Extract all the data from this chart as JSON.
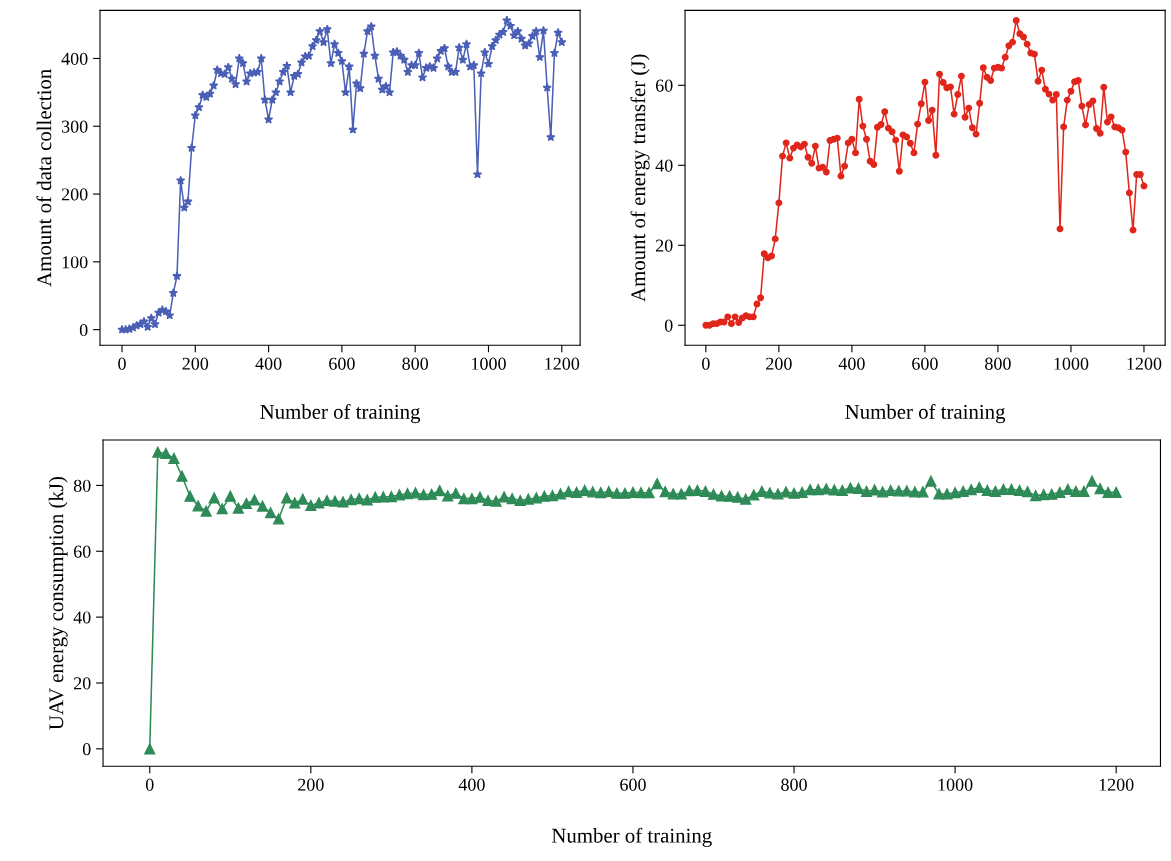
{
  "chart_data": [
    {
      "type": "line",
      "xlabel": "Number of training",
      "ylabel": "Amount of data collection",
      "marker": "star",
      "line_style": "solid",
      "grid": false,
      "xlim": [
        -60,
        1250
      ],
      "ylim": [
        -23,
        471
      ],
      "xticks": [
        0,
        200,
        400,
        600,
        800,
        1000,
        1200
      ],
      "yticks": [
        0,
        100,
        200,
        300,
        400
      ],
      "series": [
        {
          "color": "#4a5fb5",
          "x": [
            0,
            10,
            20,
            30,
            40,
            50,
            60,
            70,
            80,
            90,
            100,
            110,
            120,
            130,
            140,
            150,
            160,
            170,
            180,
            190,
            200,
            210,
            220,
            230,
            240,
            250,
            260,
            270,
            280,
            290,
            300,
            310,
            320,
            330,
            340,
            350,
            360,
            370,
            380,
            390,
            400,
            410,
            420,
            430,
            440,
            450,
            460,
            470,
            480,
            490,
            500,
            510,
            520,
            530,
            540,
            550,
            560,
            570,
            580,
            590,
            600,
            610,
            620,
            630,
            640,
            650,
            660,
            670,
            680,
            690,
            700,
            710,
            720,
            730,
            740,
            750,
            760,
            770,
            780,
            790,
            800,
            810,
            820,
            830,
            840,
            850,
            860,
            870,
            880,
            890,
            900,
            910,
            920,
            930,
            940,
            950,
            960,
            970,
            980,
            990,
            1000,
            1010,
            1020,
            1030,
            1040,
            1050,
            1060,
            1070,
            1080,
            1090,
            1100,
            1110,
            1120,
            1130,
            1140,
            1150,
            1160,
            1170,
            1180,
            1190,
            1200
          ],
          "values": [
            0,
            0,
            1,
            3,
            6,
            8,
            12,
            4,
            17,
            8,
            25,
            29,
            27,
            21,
            54,
            79,
            220,
            180,
            189,
            268,
            316,
            328,
            346,
            343,
            348,
            360,
            383,
            378,
            377,
            387,
            370,
            362,
            400,
            393,
            366,
            378,
            379,
            380,
            400,
            339,
            310,
            339,
            350,
            366,
            380,
            389,
            350,
            374,
            377,
            394,
            403,
            404,
            418,
            427,
            440,
            424,
            443,
            393,
            421,
            408,
            396,
            350,
            388,
            295,
            363,
            356,
            407,
            440,
            447,
            404,
            370,
            354,
            359,
            350,
            409,
            410,
            404,
            398,
            380,
            390,
            390,
            408,
            372,
            386,
            388,
            386,
            400,
            411,
            415,
            388,
            380,
            380,
            416,
            398,
            421,
            388,
            390,
            229,
            378,
            409,
            392,
            418,
            427,
            435,
            439,
            456,
            448,
            434,
            440,
            429,
            419,
            422,
            433,
            440,
            402,
            441,
            357,
            284,
            408,
            438,
            424
          ]
        }
      ]
    },
    {
      "type": "line",
      "xlabel": "Number of training",
      "ylabel": "Amount of energy transfer (J)",
      "marker": "circle",
      "line_style": "solid",
      "grid": false,
      "xlim": [
        -57,
        1258
      ],
      "ylim": [
        -5,
        78.75
      ],
      "xticks": [
        0,
        200,
        400,
        600,
        800,
        1000,
        1200
      ],
      "yticks": [
        0,
        20,
        40,
        60
      ],
      "series": [
        {
          "color": "#e0261b",
          "x": [
            0,
            10,
            20,
            30,
            40,
            50,
            60,
            70,
            80,
            90,
            100,
            110,
            120,
            130,
            140,
            150,
            160,
            170,
            180,
            190,
            200,
            210,
            220,
            230,
            240,
            250,
            260,
            270,
            280,
            290,
            300,
            310,
            320,
            330,
            340,
            350,
            360,
            370,
            380,
            390,
            400,
            410,
            420,
            430,
            440,
            450,
            460,
            470,
            480,
            490,
            500,
            510,
            520,
            530,
            540,
            550,
            560,
            570,
            580,
            590,
            600,
            610,
            620,
            630,
            640,
            650,
            660,
            670,
            680,
            690,
            700,
            710,
            720,
            730,
            740,
            750,
            760,
            770,
            780,
            790,
            800,
            810,
            820,
            830,
            840,
            850,
            860,
            870,
            880,
            890,
            900,
            910,
            920,
            930,
            940,
            950,
            960,
            970,
            980,
            990,
            1000,
            1010,
            1020,
            1030,
            1040,
            1050,
            1060,
            1070,
            1080,
            1090,
            1100,
            1110,
            1120,
            1130,
            1140,
            1150,
            1160,
            1170,
            1180,
            1190,
            1200
          ],
          "values": [
            0,
            0,
            0.4,
            0.4,
            0.8,
            0.8,
            2.1,
            0.4,
            2.1,
            0.7,
            1.8,
            2.4,
            2.1,
            2.1,
            5.3,
            6.9,
            17.9,
            16.9,
            17.3,
            21.6,
            30.6,
            42.3,
            45.6,
            41.8,
            44.3,
            45.1,
            44.6,
            45.3,
            42,
            40.5,
            44.8,
            39.3,
            39.5,
            38.3,
            46.2,
            46.5,
            46.8,
            37.3,
            39.8,
            45.6,
            46.5,
            43.1,
            56.5,
            49.8,
            46.5,
            41,
            40.2,
            49.5,
            50.2,
            53.4,
            49.3,
            48.4,
            46.3,
            38.5,
            47.6,
            47.1,
            45.5,
            43.1,
            50.3,
            55.4,
            60.8,
            51.2,
            53.8,
            42.5,
            62.8,
            60.7,
            59.4,
            59.6,
            52.8,
            57.7,
            62.3,
            52,
            54.3,
            49.4,
            47.8,
            55.5,
            64.4,
            62,
            61.2,
            64.3,
            64.5,
            64.3,
            67,
            69.9,
            70.8,
            76.2,
            72.9,
            72.1,
            70.3,
            68.1,
            67.8,
            61,
            63.8,
            59,
            57.8,
            56.3,
            57.7,
            24.1,
            49.6,
            56.3,
            58.5,
            60.9,
            61.2,
            54.8,
            50.1,
            55.2,
            56.1,
            49.2,
            48,
            59.5,
            50.8,
            52.1,
            49.6,
            49.4,
            48.8,
            43.3,
            33.1,
            23.8,
            37.7,
            37.7,
            34.8
          ]
        }
      ]
    },
    {
      "type": "line",
      "xlabel": "Number of training",
      "ylabel": "UAV energy consumption (kJ)",
      "marker": "triangle",
      "line_style": "solid",
      "grid": false,
      "xlim": [
        -58,
        1255
      ],
      "ylim": [
        -5.3,
        93.8
      ],
      "xticks": [
        0,
        200,
        400,
        600,
        800,
        1000,
        1200
      ],
      "yticks": [
        0,
        20,
        40,
        60,
        80
      ],
      "series": [
        {
          "color": "#2e8b57",
          "x": [
            0,
            10,
            20,
            30,
            40,
            50,
            60,
            70,
            80,
            90,
            100,
            110,
            120,
            130,
            140,
            150,
            160,
            170,
            180,
            190,
            200,
            210,
            220,
            230,
            240,
            250,
            260,
            270,
            280,
            290,
            300,
            310,
            320,
            330,
            340,
            350,
            360,
            370,
            380,
            390,
            400,
            410,
            420,
            430,
            440,
            450,
            460,
            470,
            480,
            490,
            500,
            510,
            520,
            530,
            540,
            550,
            560,
            570,
            580,
            590,
            600,
            610,
            620,
            630,
            640,
            650,
            660,
            670,
            680,
            690,
            700,
            710,
            720,
            730,
            740,
            750,
            760,
            770,
            780,
            790,
            800,
            810,
            820,
            830,
            840,
            850,
            860,
            870,
            880,
            890,
            900,
            910,
            920,
            930,
            940,
            950,
            960,
            970,
            980,
            990,
            1000,
            1010,
            1020,
            1030,
            1040,
            1050,
            1060,
            1070,
            1080,
            1090,
            1100,
            1110,
            1120,
            1130,
            1140,
            1150,
            1160,
            1170,
            1180,
            1190,
            1200
          ],
          "values": [
            0,
            90.1,
            89.7,
            88.2,
            82.8,
            76.7,
            73.8,
            72.2,
            76.2,
            72.9,
            76.7,
            73.1,
            74.5,
            75.6,
            73.7,
            71.7,
            69.8,
            76.2,
            74.7,
            75.8,
            73.9,
            74.7,
            75.4,
            75.2,
            75,
            75.7,
            76,
            75.6,
            76.4,
            76.5,
            76.6,
            77.1,
            77.5,
            77.7,
            77.2,
            77.3,
            78.4,
            76.8,
            77.6,
            76,
            76,
            76.4,
            75.4,
            75.2,
            76.5,
            76,
            75.4,
            75.8,
            76.2,
            76.7,
            76.9,
            77.4,
            78.1,
            77.9,
            78.5,
            78,
            77.8,
            78.1,
            77.6,
            77.6,
            77.9,
            77.8,
            77.8,
            80.5,
            78.1,
            77.4,
            77.4,
            78.4,
            78.5,
            78.2,
            77.3,
            76.8,
            76.7,
            76.4,
            75.8,
            77.1,
            78.2,
            77.7,
            77.4,
            78,
            77.6,
            77.9,
            78.7,
            78.7,
            78.9,
            78.6,
            78.5,
            79.2,
            79.1,
            78.2,
            78.6,
            78,
            78.5,
            78.3,
            78.3,
            78,
            78,
            81.3,
            77.4,
            77.4,
            77.8,
            78.2,
            78.7,
            79.4,
            78.5,
            78.2,
            78.8,
            78.8,
            78.5,
            78.1,
            76.9,
            77.2,
            77.3,
            77.9,
            78.8,
            78.2,
            78.2,
            81.3,
            79,
            77.9,
            77.9
          ]
        }
      ]
    }
  ]
}
